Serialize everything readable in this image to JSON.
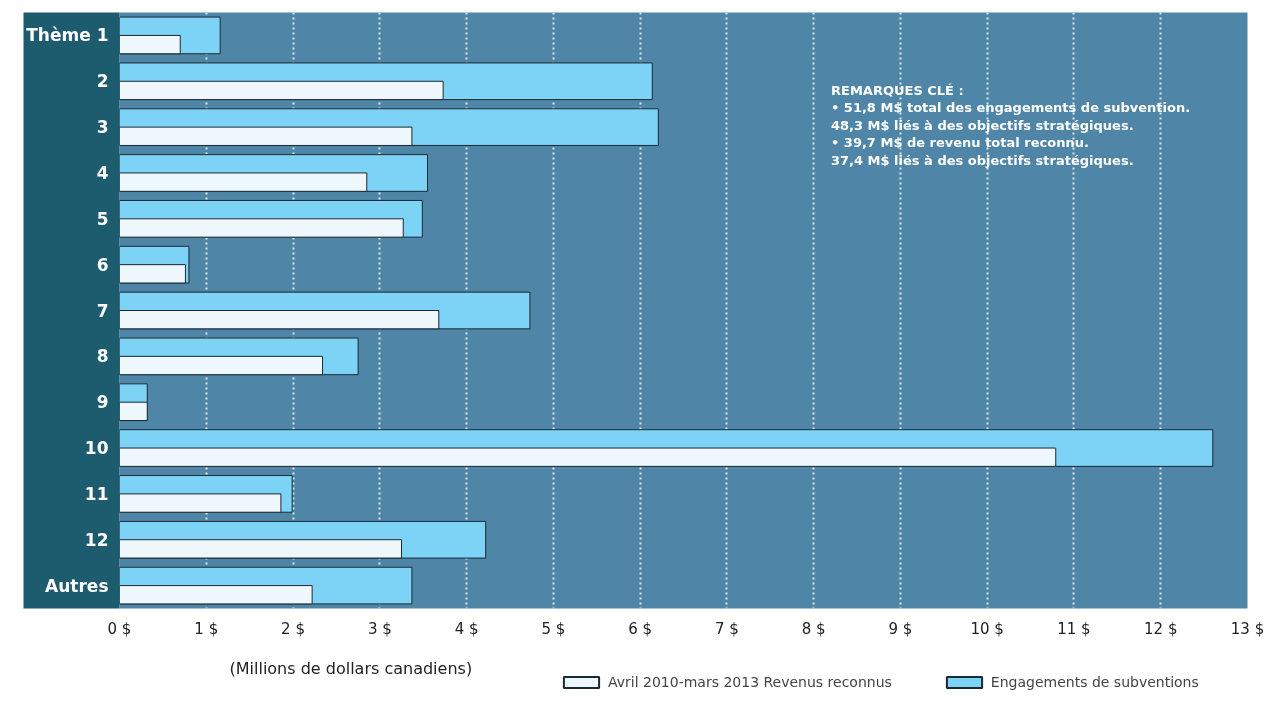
{
  "chart_data": {
    "type": "bar",
    "orientation": "horizontal",
    "categories": [
      "Thème 1",
      "2",
      "3",
      "4",
      "5",
      "6",
      "7",
      "8",
      "9",
      "10",
      "11",
      "12",
      "Autres"
    ],
    "series": [
      {
        "name": "Avril 2010-mars 2013 Revenus reconnus",
        "color": "#eef7fb",
        "values": [
          0.7,
          3.73,
          3.37,
          2.85,
          3.27,
          0.76,
          3.68,
          2.34,
          0.32,
          10.79,
          1.86,
          3.25,
          2.22
        ]
      },
      {
        "name": "Engagements de subventions",
        "color": "#7dd3f5",
        "values": [
          1.16,
          6.14,
          6.21,
          3.55,
          3.49,
          0.8,
          4.73,
          2.75,
          0.32,
          12.6,
          1.99,
          4.22,
          3.37
        ]
      }
    ],
    "xlim": [
      0,
      13
    ],
    "xticks": [
      {
        "value": 0,
        "label": "0 $"
      },
      {
        "value": 1,
        "label": "1 $"
      },
      {
        "value": 2,
        "label": "2 $"
      },
      {
        "value": 3,
        "label": "3 $"
      },
      {
        "value": 4,
        "label": "4 $"
      },
      {
        "value": 5,
        "label": "5 $"
      },
      {
        "value": 6,
        "label": "6 $"
      },
      {
        "value": 7,
        "label": "7 $"
      },
      {
        "value": 8,
        "label": "8 $"
      },
      {
        "value": 9,
        "label": "9 $"
      },
      {
        "value": 10,
        "label": "10 $"
      },
      {
        "value": 11,
        "label": "11 $"
      },
      {
        "value": 12,
        "label": "12 $"
      },
      {
        "value": 13,
        "label": "13 $"
      }
    ],
    "xlabel": "(Millions de dollars canadiens)",
    "grid": "x",
    "legend": "bottom right",
    "annotations": [
      "REMARQUES CLÉ :",
      "• 51,8 M$ total des engagements de subvention.",
      "   48,3 M$ liés à des objectifs stratégiques.",
      "• 39,7 M$ de revenu total reconnu.",
      "   37,4 M$ liés à des objectifs stratégiques."
    ]
  }
}
